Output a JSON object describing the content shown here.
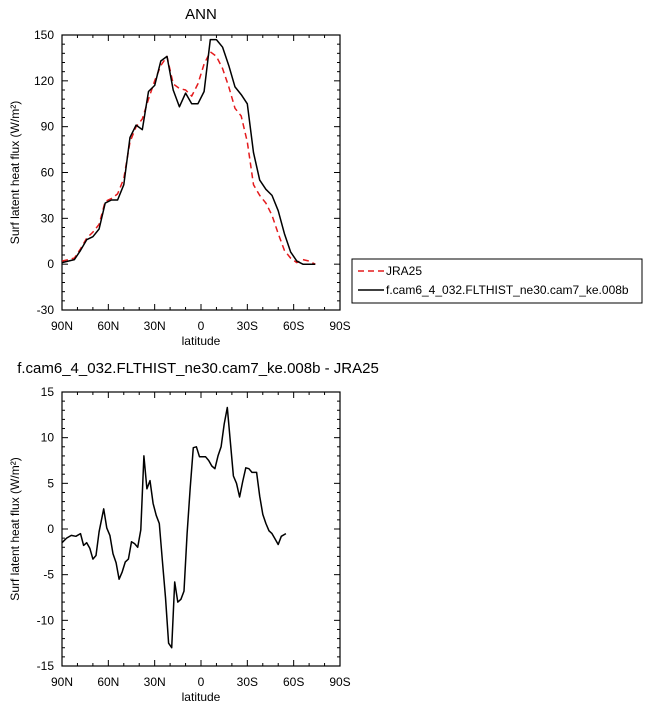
{
  "colors": {
    "jra": "#e41a1c",
    "model": "#000000"
  },
  "chart_data": [
    {
      "type": "line",
      "title": "ANN",
      "xlabel": "latitude",
      "ylabel": "Surf latent heat flux (W/m²)",
      "xlim": [
        -90,
        90
      ],
      "ylim": [
        -30,
        150
      ],
      "x_ticks": [
        -90,
        -60,
        -30,
        0,
        30,
        60,
        90
      ],
      "x_tick_labels": [
        "90N",
        "60N",
        "30N",
        "0",
        "30S",
        "60S",
        "90S"
      ],
      "y_ticks": [
        -30,
        0,
        30,
        60,
        90,
        120,
        150
      ],
      "legend_position": "right",
      "series": [
        {
          "name": "JRA25",
          "style": "dashed",
          "color": "#e41a1c",
          "points": [
            [
              -90,
              2
            ],
            [
              -86,
              3
            ],
            [
              -82,
              4
            ],
            [
              -78,
              10
            ],
            [
              -74,
              17
            ],
            [
              -70,
              21
            ],
            [
              -66,
              26
            ],
            [
              -62,
              41
            ],
            [
              -58,
              43
            ],
            [
              -54,
              46
            ],
            [
              -50,
              56
            ],
            [
              -46,
              80
            ],
            [
              -42,
              90
            ],
            [
              -38,
              95
            ],
            [
              -34,
              108
            ],
            [
              -30,
              120
            ],
            [
              -26,
              130
            ],
            [
              -22,
              136
            ],
            [
              -18,
              118
            ],
            [
              -14,
              115
            ],
            [
              -10,
              114
            ],
            [
              -6,
              110
            ],
            [
              -2,
              118
            ],
            [
              2,
              131
            ],
            [
              6,
              139
            ],
            [
              10,
              136
            ],
            [
              14,
              128
            ],
            [
              18,
              116
            ],
            [
              22,
              102
            ],
            [
              26,
              97
            ],
            [
              30,
              80
            ],
            [
              34,
              52
            ],
            [
              38,
              45
            ],
            [
              42,
              40
            ],
            [
              46,
              32
            ],
            [
              50,
              20
            ],
            [
              54,
              9
            ],
            [
              58,
              4
            ],
            [
              62,
              1
            ],
            [
              66,
              3
            ],
            [
              70,
              2
            ],
            [
              74,
              0
            ]
          ]
        },
        {
          "name": "f.cam6_4_032.FLTHIST_ne30.cam7_ke.008b",
          "style": "solid",
          "color": "#000000",
          "points": [
            [
              -90,
              1
            ],
            [
              -86,
              2
            ],
            [
              -82,
              3
            ],
            [
              -78,
              9
            ],
            [
              -74,
              16
            ],
            [
              -70,
              18
            ],
            [
              -66,
              23
            ],
            [
              -62,
              40
            ],
            [
              -58,
              42
            ],
            [
              -54,
              42
            ],
            [
              -50,
              52
            ],
            [
              -46,
              83
            ],
            [
              -42,
              91
            ],
            [
              -38,
              88
            ],
            [
              -34,
              113
            ],
            [
              -30,
              117
            ],
            [
              -26,
              133
            ],
            [
              -22,
              136
            ],
            [
              -18,
              114
            ],
            [
              -14,
              103
            ],
            [
              -10,
              112
            ],
            [
              -6,
              105
            ],
            [
              -2,
              105
            ],
            [
              2,
              113
            ],
            [
              6,
              147
            ],
            [
              10,
              147
            ],
            [
              14,
              142
            ],
            [
              18,
              130
            ],
            [
              22,
              116
            ],
            [
              26,
              111
            ],
            [
              30,
              105
            ],
            [
              34,
              73
            ],
            [
              38,
              55
            ],
            [
              42,
              49
            ],
            [
              46,
              45
            ],
            [
              50,
              35
            ],
            [
              54,
              20
            ],
            [
              58,
              8
            ],
            [
              62,
              2
            ],
            [
              66,
              0
            ],
            [
              70,
              0
            ],
            [
              74,
              0
            ]
          ]
        }
      ]
    },
    {
      "type": "line",
      "title": "f.cam6_4_032.FLTHIST_ne30.cam7_ke.008b - JRA25",
      "xlabel": "latitude",
      "ylabel": "Surf latent heat flux (W/m²)",
      "xlim": [
        -90,
        90
      ],
      "ylim": [
        -15,
        15
      ],
      "x_ticks": [
        -90,
        -60,
        -30,
        0,
        30,
        60,
        90
      ],
      "x_tick_labels": [
        "90N",
        "60N",
        "30N",
        "0",
        "30S",
        "60S",
        "90S"
      ],
      "y_ticks": [
        -15,
        -10,
        -5,
        0,
        5,
        10,
        15
      ],
      "series": [
        {
          "style": "solid",
          "color": "#000000",
          "points": [
            [
              -90,
              -1.5
            ],
            [
              -87,
              -1.0
            ],
            [
              -84,
              -0.7
            ],
            [
              -81,
              -0.8
            ],
            [
              -78,
              -0.5
            ],
            [
              -76,
              -1.8
            ],
            [
              -74,
              -1.5
            ],
            [
              -72,
              -2.1
            ],
            [
              -70,
              -3.3
            ],
            [
              -68,
              -2.9
            ],
            [
              -66,
              -0.3
            ],
            [
              -63,
              2.2
            ],
            [
              -61,
              0.1
            ],
            [
              -59,
              -0.7
            ],
            [
              -57,
              -2.7
            ],
            [
              -55,
              -3.7
            ],
            [
              -53,
              -5.5
            ],
            [
              -51,
              -4.7
            ],
            [
              -49,
              -3.6
            ],
            [
              -47,
              -3.3
            ],
            [
              -45,
              -1.4
            ],
            [
              -43,
              -1.6
            ],
            [
              -41,
              -2.0
            ],
            [
              -39,
              -0.1
            ],
            [
              -37,
              8.0
            ],
            [
              -35,
              4.4
            ],
            [
              -33,
              5.3
            ],
            [
              -31,
              2.8
            ],
            [
              -29,
              1.5
            ],
            [
              -27,
              0.6
            ],
            [
              -25,
              -3.5
            ],
            [
              -23,
              -7.5
            ],
            [
              -21,
              -12.5
            ],
            [
              -19,
              -13.0
            ],
            [
              -17,
              -5.8
            ],
            [
              -15,
              -8.0
            ],
            [
              -13,
              -7.7
            ],
            [
              -11,
              -6.8
            ],
            [
              -9,
              -0.5
            ],
            [
              -7,
              4.5
            ],
            [
              -5,
              8.9
            ],
            [
              -3,
              9.0
            ],
            [
              -1,
              7.9
            ],
            [
              1,
              7.9
            ],
            [
              3,
              7.9
            ],
            [
              5,
              7.5
            ],
            [
              7,
              6.9
            ],
            [
              9,
              6.6
            ],
            [
              11,
              8.0
            ],
            [
              13,
              9.0
            ],
            [
              15,
              11.5
            ],
            [
              17,
              13.3
            ],
            [
              19,
              9.6
            ],
            [
              21,
              5.8
            ],
            [
              23,
              5.0
            ],
            [
              25,
              3.5
            ],
            [
              27,
              5.2
            ],
            [
              29,
              6.7
            ],
            [
              31,
              6.6
            ],
            [
              33,
              6.2
            ],
            [
              36,
              6.2
            ],
            [
              38,
              3.6
            ],
            [
              40,
              1.6
            ],
            [
              42,
              0.6
            ],
            [
              44,
              -0.2
            ],
            [
              46,
              -0.5
            ],
            [
              48,
              -1.1
            ],
            [
              50,
              -1.7
            ],
            [
              52,
              -0.8
            ],
            [
              55,
              -0.5
            ]
          ]
        }
      ]
    }
  ]
}
